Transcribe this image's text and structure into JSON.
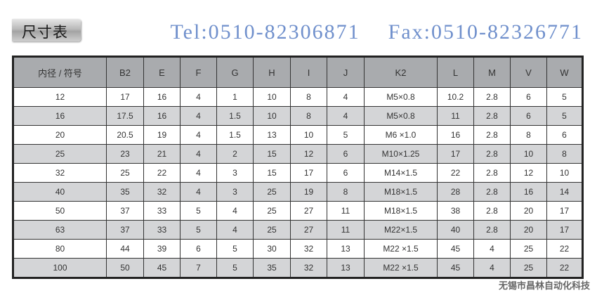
{
  "title": "尺寸表",
  "table": {
    "headers": [
      "内径 / 符号",
      "B2",
      "E",
      "F",
      "G",
      "H",
      "I",
      "J",
      "K2",
      "L",
      "M",
      "V",
      "W"
    ],
    "rows": [
      [
        "12",
        "17",
        "16",
        "4",
        "1",
        "10",
        "8",
        "4",
        "M5×0.8",
        "10.2",
        "2.8",
        "6",
        "5"
      ],
      [
        "16",
        "17.5",
        "16",
        "4",
        "1.5",
        "10",
        "8",
        "4",
        "M5×0.8",
        "11",
        "2.8",
        "6",
        "5"
      ],
      [
        "20",
        "20.5",
        "19",
        "4",
        "1.5",
        "13",
        "10",
        "5",
        "M6 ×1.0",
        "16",
        "2.8",
        "8",
        "6"
      ],
      [
        "25",
        "23",
        "21",
        "4",
        "2",
        "15",
        "12",
        "6",
        "M10×1.25",
        "17",
        "2.8",
        "10",
        "8"
      ],
      [
        "32",
        "25",
        "22",
        "4",
        "3",
        "15",
        "17",
        "6",
        "M14×1.5",
        "22",
        "2.8",
        "12",
        "10"
      ],
      [
        "40",
        "35",
        "32",
        "4",
        "3",
        "25",
        "19",
        "8",
        "M18×1.5",
        "28",
        "2.8",
        "16",
        "14"
      ],
      [
        "50",
        "37",
        "33",
        "5",
        "4",
        "25",
        "27",
        "11",
        "M18×1.5",
        "38",
        "2.8",
        "20",
        "17"
      ],
      [
        "63",
        "37",
        "33",
        "5",
        "4",
        "25",
        "27",
        "11",
        "M22×1.5",
        "40",
        "2.8",
        "20",
        "17"
      ],
      [
        "80",
        "44",
        "39",
        "6",
        "5",
        "30",
        "32",
        "13",
        "M22 ×1.5",
        "45",
        "4",
        "25",
        "22"
      ],
      [
        "100",
        "50",
        "45",
        "7",
        "5",
        "35",
        "32",
        "13",
        "M22 ×1.5",
        "45",
        "4",
        "25",
        "22"
      ]
    ]
  },
  "watermark": {
    "tel": "Tel:0510-82306871",
    "fax": "Fax:0510-82326771"
  },
  "footer": "无锡市昌林自动化科技"
}
